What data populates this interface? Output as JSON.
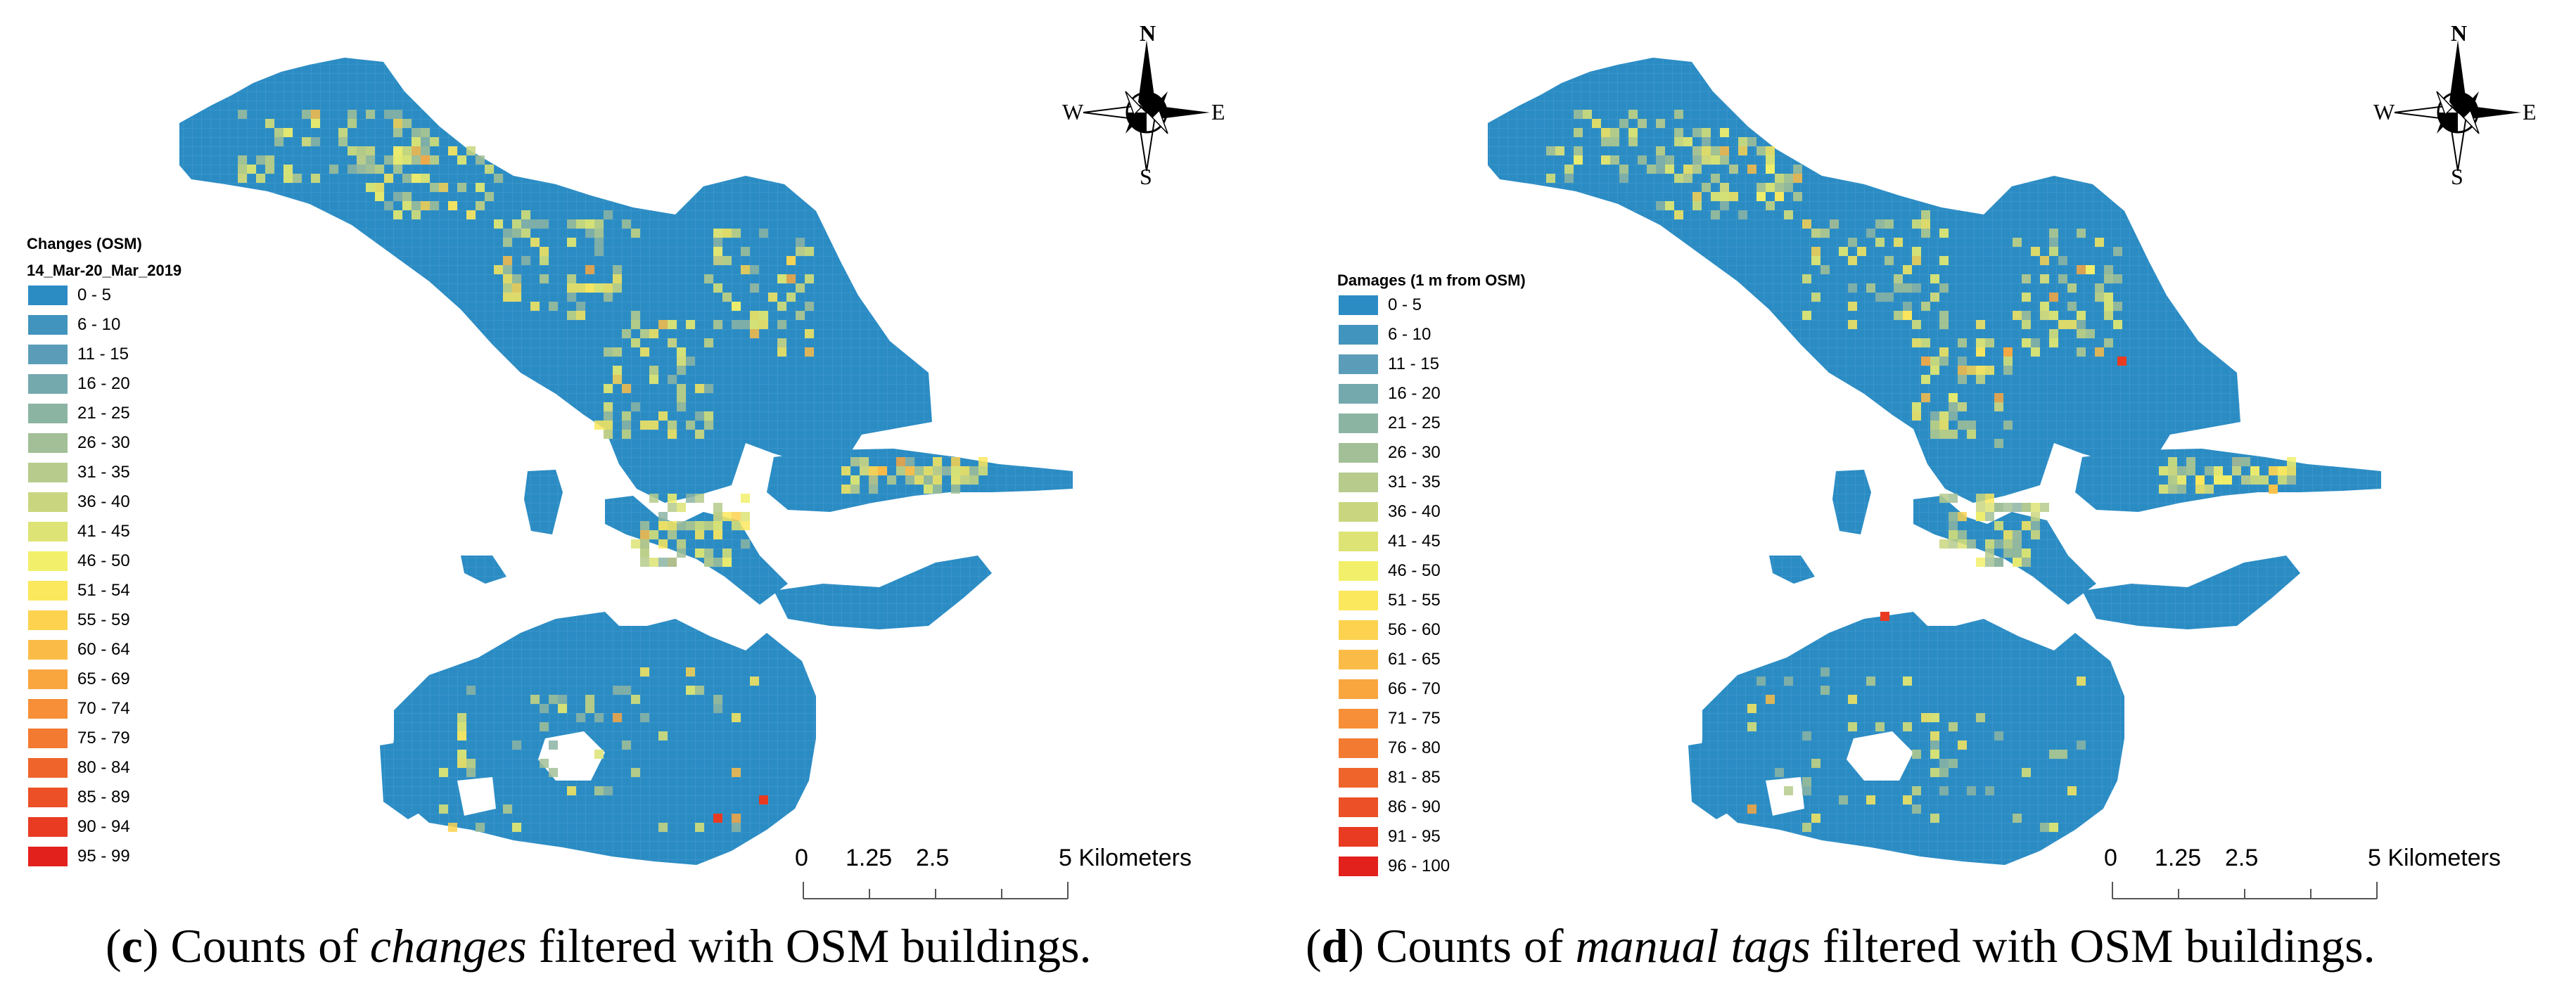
{
  "panels": [
    {
      "id": "c",
      "legend": {
        "title_line1": "Changes (OSM)",
        "title_line2": "14_Mar-20_Mar_2019",
        "items": [
          {
            "label": "0 - 5",
            "color": "#2b8cc4"
          },
          {
            "label": "6 - 10",
            "color": "#4194bd"
          },
          {
            "label": "11 - 15",
            "color": "#5b9db8"
          },
          {
            "label": "16 - 20",
            "color": "#74a9ae"
          },
          {
            "label": "21 - 25",
            "color": "#8cb4a3"
          },
          {
            "label": "26 - 30",
            "color": "#a2bf97"
          },
          {
            "label": "31 - 35",
            "color": "#b6cb8c"
          },
          {
            "label": "36 - 40",
            "color": "#cad67f"
          },
          {
            "label": "41 - 45",
            "color": "#dde374"
          },
          {
            "label": "46 - 50",
            "color": "#f2f06a"
          },
          {
            "label": "51 - 54",
            "color": "#fbe85c"
          },
          {
            "label": "55 - 59",
            "color": "#fcd24f"
          },
          {
            "label": "60 - 64",
            "color": "#fbbc47"
          },
          {
            "label": "65 - 69",
            "color": "#f9a63f"
          },
          {
            "label": "70 - 74",
            "color": "#f68f37"
          },
          {
            "label": "75 - 79",
            "color": "#f37a31"
          },
          {
            "label": "80 - 84",
            "color": "#ef642b"
          },
          {
            "label": "85 - 89",
            "color": "#ec5026"
          },
          {
            "label": "90 - 94",
            "color": "#e83b21"
          },
          {
            "label": "95 - 99",
            "color": "#e2201c"
          }
        ]
      },
      "compass": {
        "n": "N",
        "s": "S",
        "e": "E",
        "w": "W"
      },
      "scale": {
        "labels": [
          "0",
          "1.25",
          "2.5",
          "5 Kilometers"
        ]
      },
      "caption": {
        "letter": "c",
        "before": "Counts of",
        "emph": "changes",
        "after": "filtered with OSM buildings."
      }
    },
    {
      "id": "d",
      "legend": {
        "title_line1": "Damages (1 m from OSM)",
        "items": [
          {
            "label": "0 - 5",
            "color": "#2b8cc4"
          },
          {
            "label": "6 - 10",
            "color": "#4194bd"
          },
          {
            "label": "11 - 15",
            "color": "#5b9db8"
          },
          {
            "label": "16 - 20",
            "color": "#74a9ae"
          },
          {
            "label": "21 - 25",
            "color": "#8cb4a3"
          },
          {
            "label": "26 - 30",
            "color": "#a2bf97"
          },
          {
            "label": "31 - 35",
            "color": "#b6cb8c"
          },
          {
            "label": "36 - 40",
            "color": "#cad67f"
          },
          {
            "label": "41 - 45",
            "color": "#dde374"
          },
          {
            "label": "46 - 50",
            "color": "#f2f06a"
          },
          {
            "label": "51 - 55",
            "color": "#fbe85c"
          },
          {
            "label": "56 - 60",
            "color": "#fcd24f"
          },
          {
            "label": "61 - 65",
            "color": "#fbbc47"
          },
          {
            "label": "66 - 70",
            "color": "#f9a63f"
          },
          {
            "label": "71 - 75",
            "color": "#f68f37"
          },
          {
            "label": "76 - 80",
            "color": "#f37a31"
          },
          {
            "label": "81 - 85",
            "color": "#ef642b"
          },
          {
            "label": "86 - 90",
            "color": "#ec5026"
          },
          {
            "label": "91 - 95",
            "color": "#e83b21"
          },
          {
            "label": "96 - 100",
            "color": "#e2201c"
          }
        ]
      },
      "compass": {
        "n": "N",
        "s": "S",
        "e": "E",
        "w": "W"
      },
      "scale": {
        "labels": [
          "0",
          "1.25",
          "2.5",
          "5 Kilometers"
        ]
      },
      "caption": {
        "letter": "d",
        "before": "Counts of",
        "emph": "manual tags",
        "after": "filtered with OSM buildings."
      }
    }
  ],
  "colors": {
    "base": "#2b8cc4",
    "grid_line": "#4a9ccc"
  }
}
